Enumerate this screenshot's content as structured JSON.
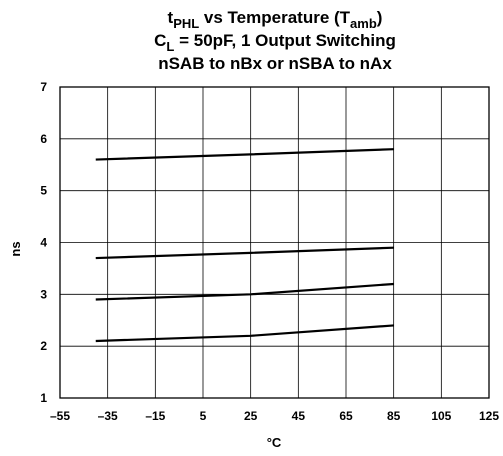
{
  "chart_data": {
    "type": "line",
    "title": {
      "line1": {
        "t": "t",
        "t_sub": "PHL",
        "mid": " vs Temperature (T",
        "amb_sub": "amb",
        "close": ")"
      },
      "line2": {
        "c": "C",
        "c_sub": "L",
        "rest": " = 50pF, 1 Output Switching"
      },
      "line3": "nSAB to nBx or nSBA to nAx"
    },
    "xlabel": "°C",
    "ylabel": "ns",
    "xlim": [
      -55,
      125
    ],
    "ylim": [
      1,
      7
    ],
    "xticks": [
      -55,
      -35,
      -15,
      5,
      25,
      45,
      65,
      85,
      105,
      125
    ],
    "xtick_labels": [
      "–55",
      "–35",
      "–15",
      "5",
      "25",
      "45",
      "65",
      "85",
      "105",
      "125"
    ],
    "yticks": [
      1,
      2,
      3,
      4,
      5,
      6,
      7
    ],
    "ytick_labels": [
      "1",
      "2",
      "3",
      "4",
      "5",
      "6",
      "7"
    ],
    "grid": true,
    "series": [
      {
        "x": [
          -40,
          25,
          85
        ],
        "values": [
          5.6,
          5.7,
          5.8
        ]
      },
      {
        "x": [
          -40,
          25,
          85
        ],
        "values": [
          3.7,
          3.8,
          3.9
        ]
      },
      {
        "x": [
          -40,
          25,
          85
        ],
        "values": [
          2.9,
          3.0,
          3.2
        ]
      },
      {
        "x": [
          -40,
          25,
          85
        ],
        "values": [
          2.1,
          2.2,
          2.4
        ]
      }
    ],
    "colors": {
      "line": "#000000",
      "grid": "#000000",
      "background": "#ffffff"
    }
  }
}
